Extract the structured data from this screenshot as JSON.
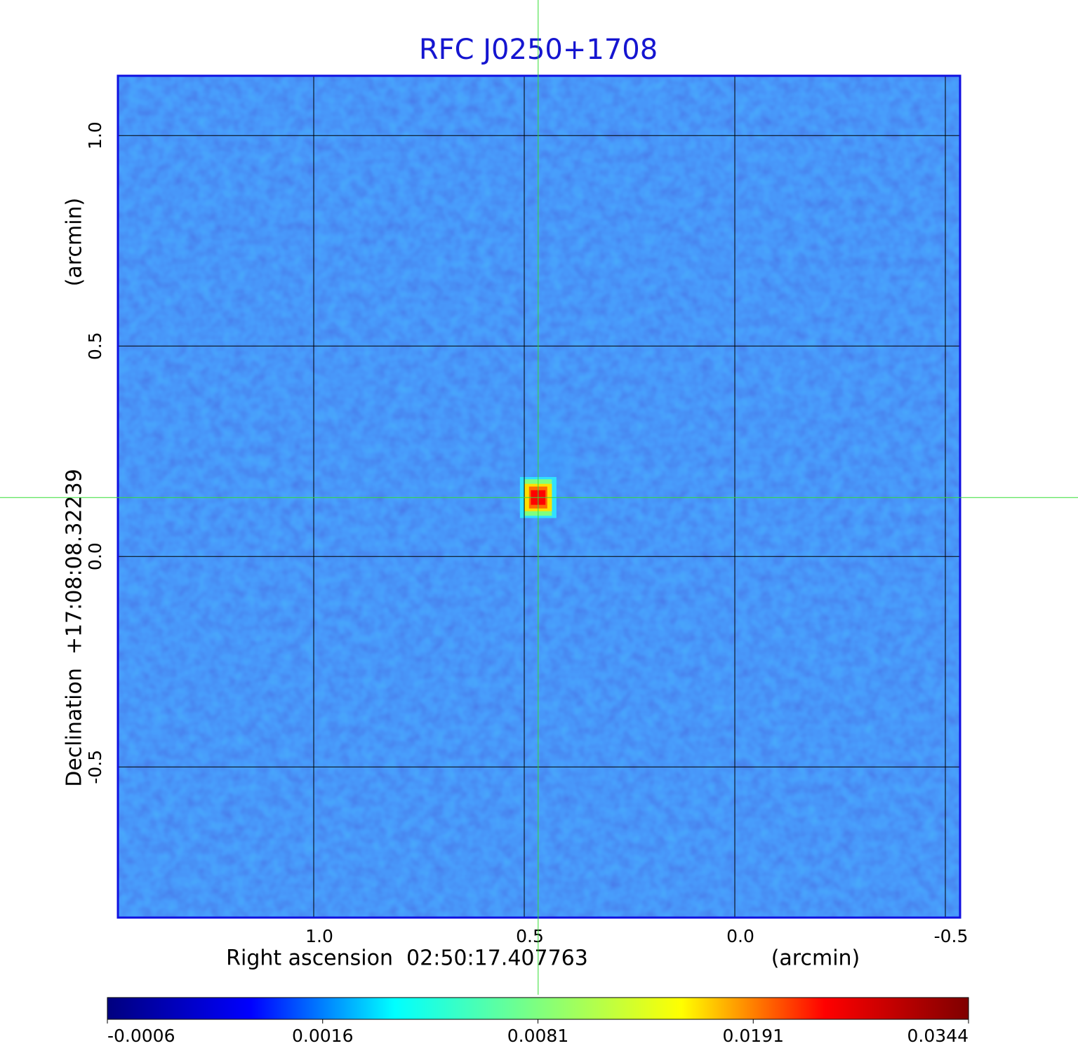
{
  "chart_data": {
    "type": "image",
    "title": "RFC J0250+1708",
    "xlabel": "Right ascension  02:50:17.407763",
    "xunit": "(arcmin)",
    "ylabel": "Declination  +17:08:08.32239",
    "yunit": "(arcmin)",
    "xlim": [
      1.465,
      -0.535
    ],
    "ylim": [
      -0.858,
      1.142
    ],
    "xticks": [
      {
        "value": 1,
        "label": "1.0"
      },
      0.5,
      {
        "value": 0,
        "label": "0.0"
      },
      -0.5
    ],
    "yticks": [
      -0.5,
      {
        "value": 0,
        "label": "0.0"
      },
      0.5,
      {
        "value": 1,
        "label": "1.0"
      }
    ],
    "grid": true,
    "source": {
      "x": 0.467,
      "y": 0.14,
      "peak": 0.0344
    },
    "crosshair": {
      "x": 0.467,
      "y": 0.14,
      "color": "#33dd33"
    },
    "colorbar": {
      "ticks": [
        -0.0006,
        0.0016,
        0.0081,
        0.0191,
        0.0344
      ],
      "colormap": [
        "#00007f",
        "#0000ff",
        "#00ffff",
        "#7fff7f",
        "#ffff00",
        "#ff0000",
        "#7f0000"
      ]
    }
  }
}
